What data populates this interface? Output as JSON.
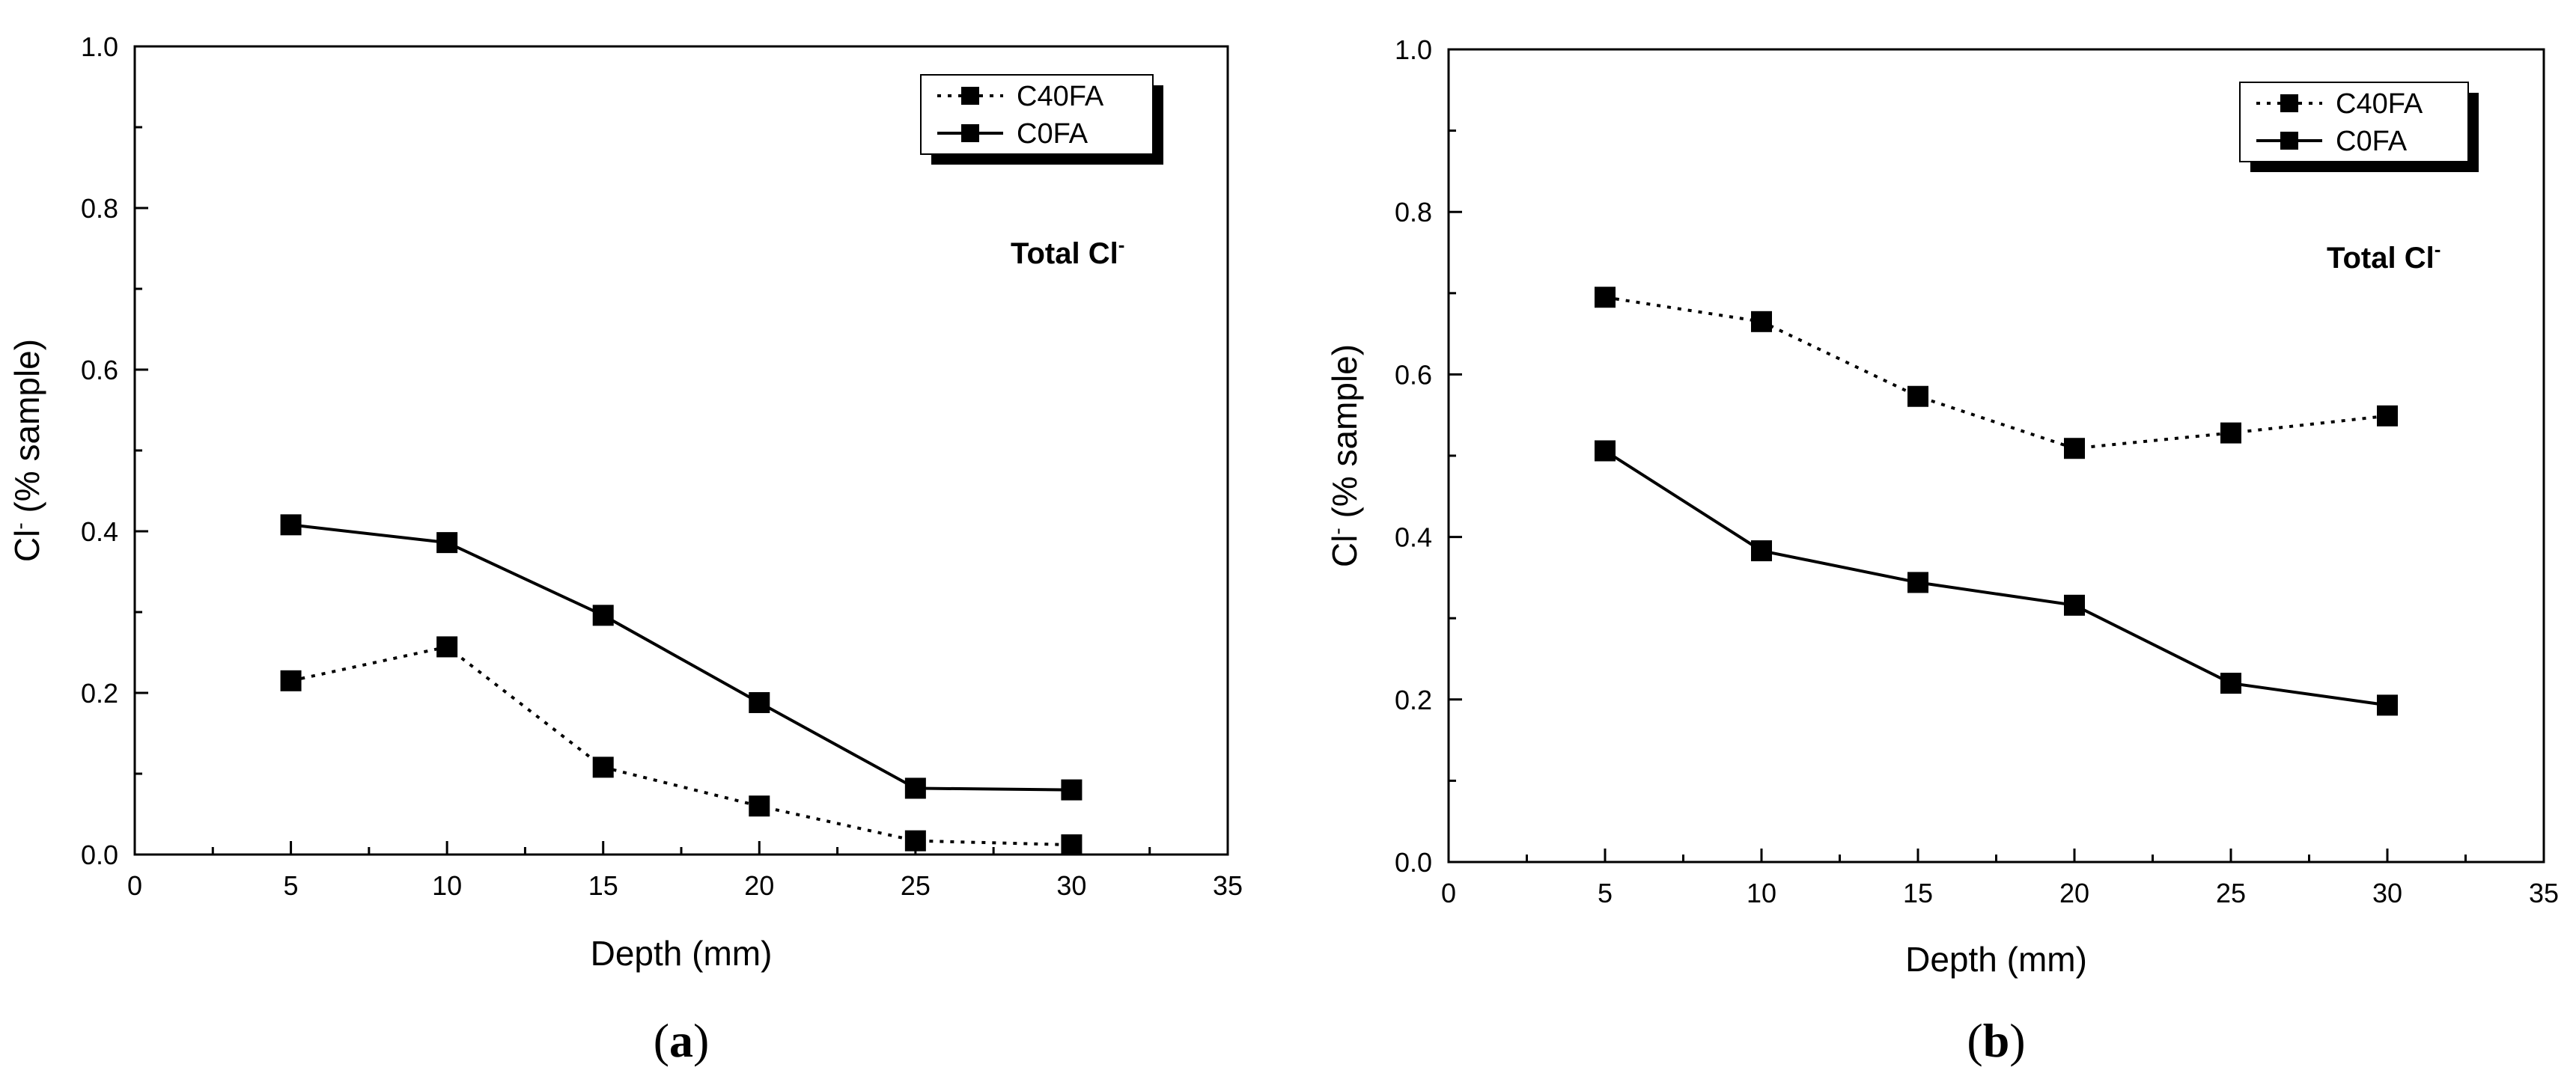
{
  "chart_data": [
    {
      "type": "line",
      "panel_label": "a",
      "annotation": "Total Cl",
      "annotation_sup": "-",
      "xlabel": "Depth (mm)",
      "ylabel_main": "Cl",
      "ylabel_sup": "-",
      "ylabel_rest": " (% sample)",
      "xlim": [
        0,
        35
      ],
      "ylim": [
        0,
        1.0
      ],
      "x_ticks": [
        0,
        5,
        10,
        15,
        20,
        25,
        30,
        35
      ],
      "x_tick_labels": [
        "0",
        "5",
        "10",
        "15",
        "20",
        "25",
        "30",
        "35"
      ],
      "y_ticks": [
        0,
        0.2,
        0.4,
        0.6,
        0.8,
        1.0
      ],
      "y_tick_labels": [
        "0.0",
        "0.2",
        "0.4",
        "0.6",
        "0.8",
        "1.0"
      ],
      "legend_position": "top-right",
      "x": [
        5,
        10,
        15,
        20,
        25,
        30
      ],
      "series": [
        {
          "name": "C40FA",
          "style": "dotted",
          "values": [
            0.215,
            0.257,
            0.108,
            0.06,
            0.017,
            0.012
          ]
        },
        {
          "name": "C0FA",
          "style": "solid",
          "values": [
            0.408,
            0.386,
            0.296,
            0.188,
            0.082,
            0.08
          ]
        }
      ]
    },
    {
      "type": "line",
      "panel_label": "b",
      "annotation": "Total Cl",
      "annotation_sup": "-",
      "xlabel": "Depth (mm)",
      "ylabel_main": "Cl",
      "ylabel_sup": "-",
      "ylabel_rest": " (% sample)",
      "xlim": [
        0,
        35
      ],
      "ylim": [
        0,
        1.0
      ],
      "x_ticks": [
        0,
        5,
        10,
        15,
        20,
        25,
        30,
        35
      ],
      "x_tick_labels": [
        "0",
        "5",
        "10",
        "15",
        "20",
        "25",
        "30",
        "35"
      ],
      "y_ticks": [
        0,
        0.2,
        0.4,
        0.6,
        0.8,
        1.0
      ],
      "y_tick_labels": [
        "0.0",
        "0.2",
        "0.4",
        "0.6",
        "0.8",
        "1.0"
      ],
      "legend_position": "top-right",
      "x": [
        5,
        10,
        15,
        20,
        25,
        30
      ],
      "series": [
        {
          "name": "C40FA",
          "style": "dotted",
          "values": [
            0.695,
            0.665,
            0.573,
            0.509,
            0.528,
            0.549
          ]
        },
        {
          "name": "C0FA",
          "style": "solid",
          "values": [
            0.506,
            0.383,
            0.344,
            0.316,
            0.22,
            0.193
          ]
        }
      ]
    }
  ]
}
